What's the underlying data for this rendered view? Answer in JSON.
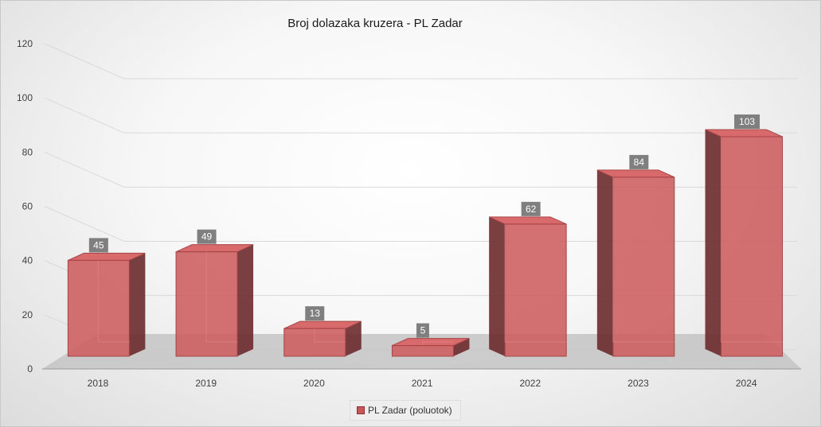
{
  "chart_data": {
    "type": "bar",
    "title": "Broj dolazaka kruzera - PL Zadar",
    "categories": [
      "2018",
      "2019",
      "2020",
      "2021",
      "2022",
      "2023",
      "2024"
    ],
    "series": [
      {
        "name": "PL Zadar (poluotok)",
        "values": [
          45,
          49,
          13,
          5,
          62,
          84,
          103
        ]
      }
    ],
    "y_ticks": [
      "0",
      "20",
      "40",
      "60",
      "80",
      "100",
      "120"
    ],
    "ylim": [
      0,
      120
    ],
    "xlabel": "",
    "ylabel": "",
    "grid": true,
    "legend_position": "bottom",
    "data_labels": true,
    "style": "3d-column"
  },
  "colors": {
    "bar_front": "#cc5c5e",
    "bar_side": "#6b2a2c",
    "bar_top": "#d96a6c",
    "floor": "#c4c4c4",
    "data_label_bg": "#7f7f7f",
    "gridline": "#d9d9d9"
  }
}
